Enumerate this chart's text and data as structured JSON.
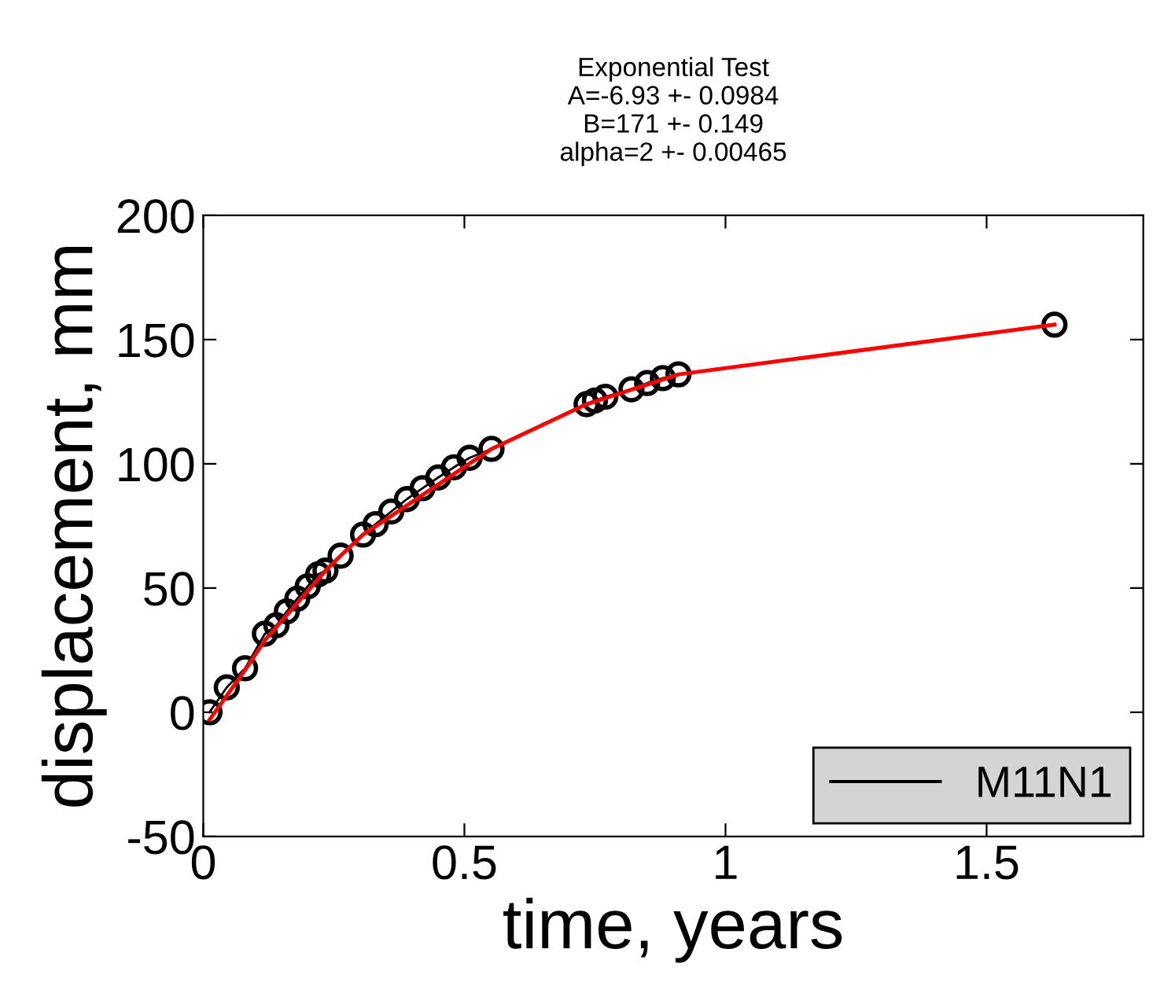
{
  "chart_data": {
    "type": "line",
    "title": "Exponential Test\nA=-6.93 +- 0.0984\nB=171 +- 0.149\nalpha=2 +- 0.00465",
    "xlabel": "time, years",
    "ylabel": "displacement, mm",
    "xlim": [
      0,
      1.8
    ],
    "xticks": [
      0,
      0.5,
      1,
      1.5
    ],
    "ylim": [
      -50,
      200
    ],
    "yticks": [
      -50,
      0,
      50,
      100,
      150,
      200
    ],
    "grid": false,
    "legend": "bottom right",
    "series": [
      {
        "name": "M11N1",
        "color": "#000000",
        "marker": "circle",
        "line_style": "solid",
        "x": [
          0.012,
          0.045,
          0.08,
          0.118,
          0.14,
          0.16,
          0.18,
          0.2,
          0.22,
          0.234,
          0.263,
          0.306,
          0.33,
          0.36,
          0.39,
          0.42,
          0.45,
          0.48,
          0.51,
          0.552,
          0.734,
          0.75,
          0.77,
          0.82,
          0.85,
          0.88,
          0.91,
          1.63
        ],
        "values": [
          0,
          10,
          17.7,
          31.6,
          35,
          40.6,
          45.7,
          50.7,
          55.5,
          57,
          63,
          71.5,
          75.7,
          80.8,
          85.8,
          90.2,
          94.5,
          98.6,
          102.4,
          106,
          124,
          125.5,
          127,
          130,
          132.5,
          134.5,
          136,
          156
        ]
      },
      {
        "color": "#ff0000",
        "marker": "none",
        "line_style": "solid",
        "x": [
          0.012,
          0.08,
          0.118,
          0.234,
          0.263,
          0.306,
          0.552,
          0.734,
          0.91,
          1.63
        ],
        "values": [
          -3,
          17,
          29,
          57,
          63,
          71.5,
          106,
          124,
          136,
          156
        ]
      }
    ]
  }
}
